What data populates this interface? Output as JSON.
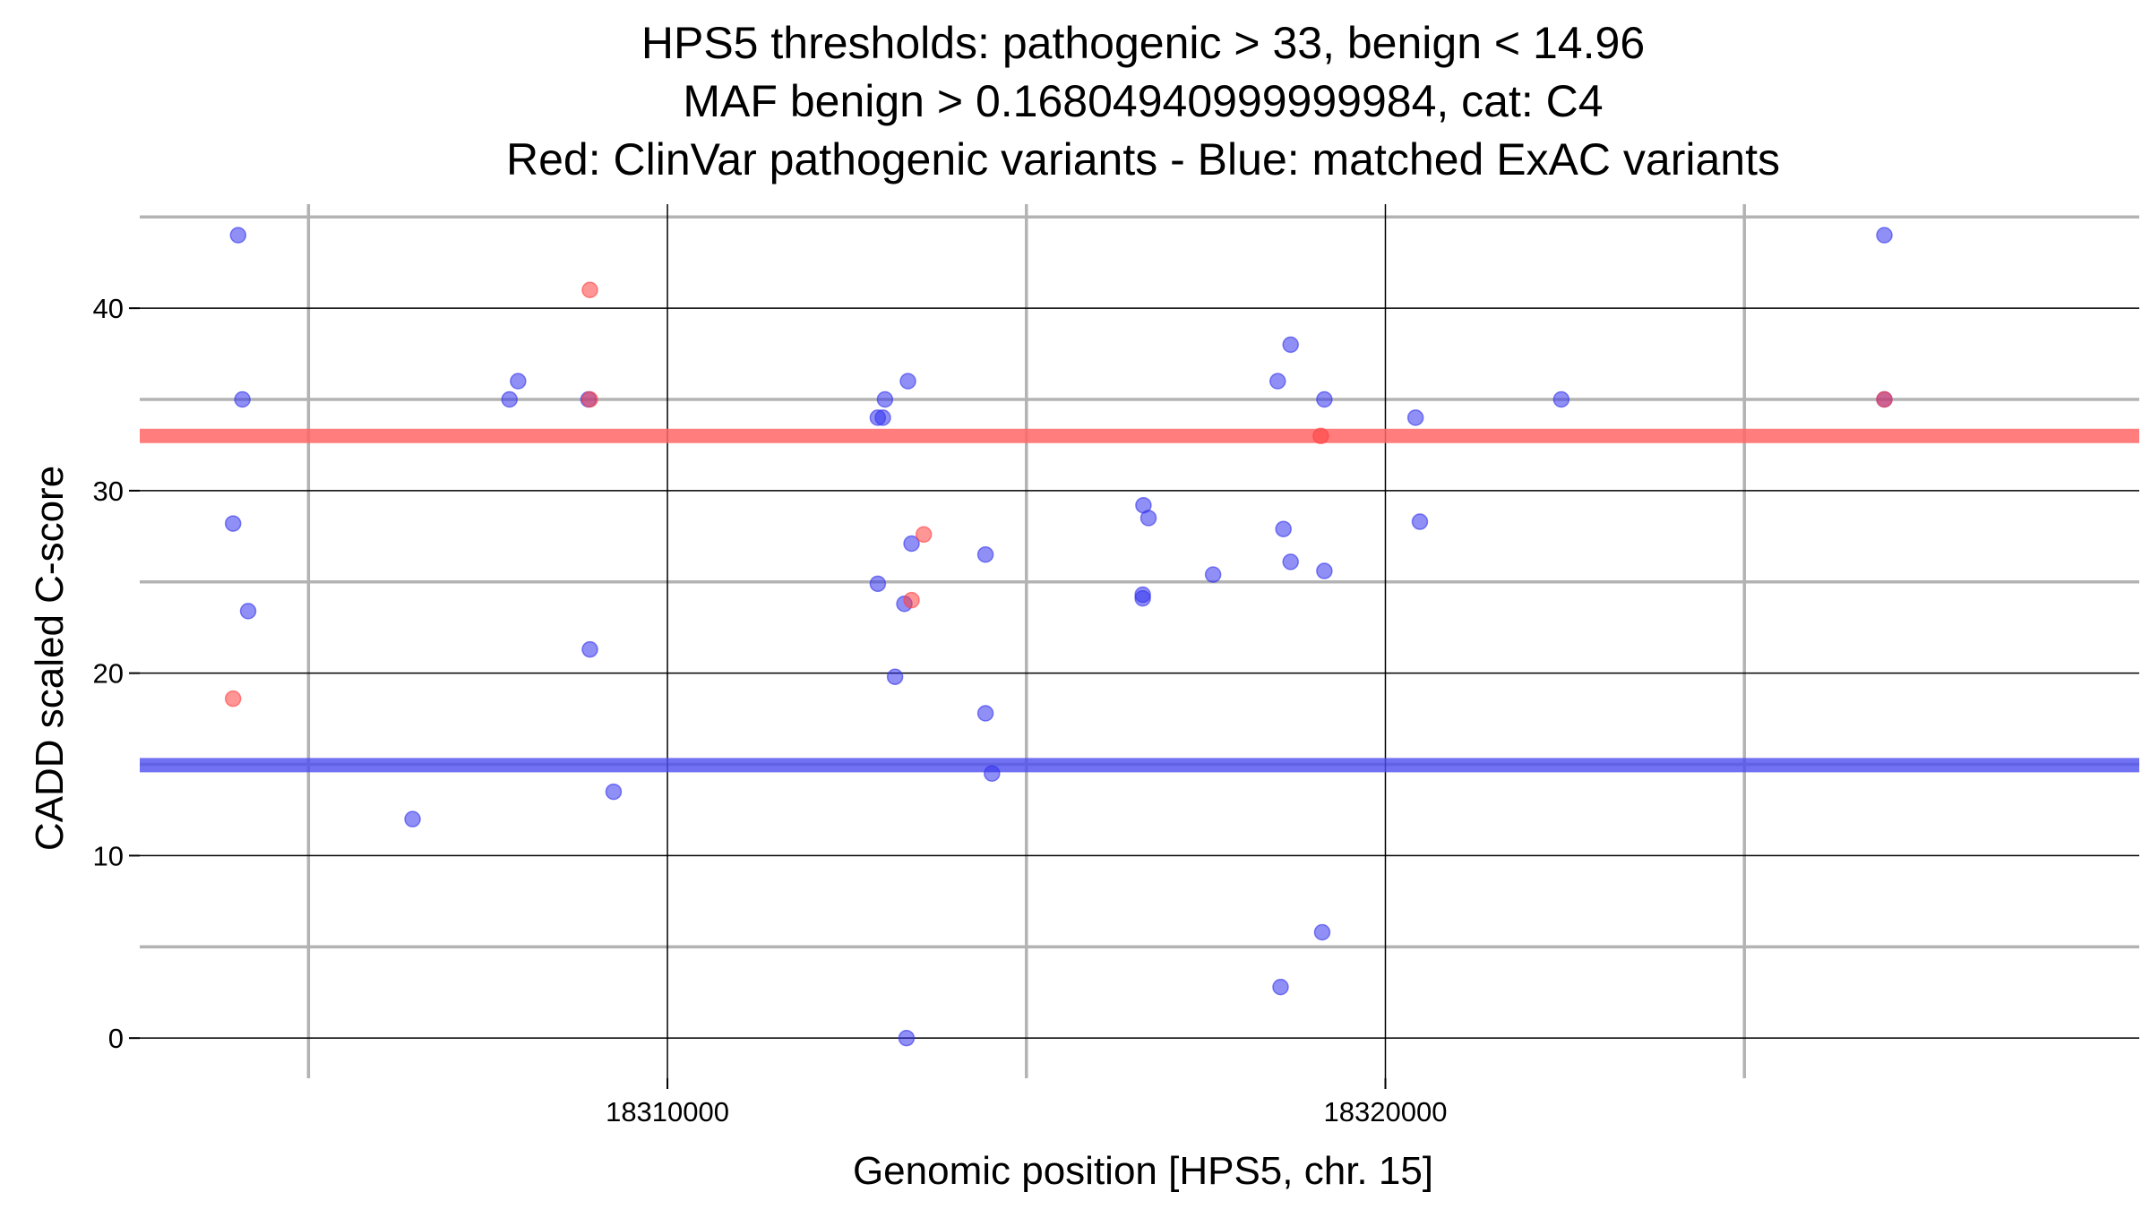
{
  "chart_data": {
    "type": "scatter",
    "title_lines": [
      "HPS5 thresholds: pathogenic > 33, benign < 14.96",
      "MAF benign > 0.16804940999999984, cat: C4",
      "Red: ClinVar pathogenic variants - Blue: matched ExAC variants"
    ],
    "xlabel": "Genomic position [HPS5, chr. 15]",
    "ylabel": "CADD scaled C-score",
    "xlim": [
      18302650,
      18330500
    ],
    "ylim": [
      -2.2,
      45.7
    ],
    "x_major_ticks": [
      18310000,
      18320000
    ],
    "x_minor_ticks": [
      18305000,
      18315000,
      18325000
    ],
    "y_major_ticks": [
      0,
      10,
      20,
      30,
      40
    ],
    "y_minor_ticks": [
      5,
      15,
      25,
      35,
      45
    ],
    "thresholds": {
      "pathogenic": 33,
      "benign": 14.96,
      "pathogenic_color": "#ff6666",
      "benign_color": "#4d4df0"
    },
    "colors": {
      "clinvar": "#ff4040",
      "exac": "#3333ee",
      "major_grid": "#000000",
      "minor_grid": "#b3b3b3"
    },
    "series": [
      {
        "name": "ClinVar pathogenic variants",
        "color": "#ff4040",
        "points": [
          {
            "x": 18303950,
            "y": 18.6
          },
          {
            "x": 18308920,
            "y": 41.0
          },
          {
            "x": 18308920,
            "y": 35.0
          },
          {
            "x": 18313570,
            "y": 27.6
          },
          {
            "x": 18313400,
            "y": 24.0
          },
          {
            "x": 18319100,
            "y": 33.0
          },
          {
            "x": 18326950,
            "y": 35.0
          }
        ]
      },
      {
        "name": "matched ExAC variants",
        "color": "#3333ee",
        "points": [
          {
            "x": 18304020,
            "y": 44.0
          },
          {
            "x": 18304080,
            "y": 35.0
          },
          {
            "x": 18303950,
            "y": 28.2
          },
          {
            "x": 18304160,
            "y": 23.4
          },
          {
            "x": 18306450,
            "y": 12.0
          },
          {
            "x": 18307800,
            "y": 35.0
          },
          {
            "x": 18307920,
            "y": 36.0
          },
          {
            "x": 18308900,
            "y": 35.0
          },
          {
            "x": 18308920,
            "y": 21.3
          },
          {
            "x": 18309250,
            "y": 13.5
          },
          {
            "x": 18312930,
            "y": 34.0
          },
          {
            "x": 18313000,
            "y": 34.0
          },
          {
            "x": 18313030,
            "y": 35.0
          },
          {
            "x": 18313350,
            "y": 36.0
          },
          {
            "x": 18313400,
            "y": 27.1
          },
          {
            "x": 18312930,
            "y": 24.9
          },
          {
            "x": 18313300,
            "y": 23.8
          },
          {
            "x": 18313170,
            "y": 19.8
          },
          {
            "x": 18313330,
            "y": 0.0
          },
          {
            "x": 18314430,
            "y": 26.5
          },
          {
            "x": 18314430,
            "y": 17.8
          },
          {
            "x": 18314520,
            "y": 14.5
          },
          {
            "x": 18316630,
            "y": 29.2
          },
          {
            "x": 18316700,
            "y": 28.5
          },
          {
            "x": 18316620,
            "y": 24.3
          },
          {
            "x": 18316620,
            "y": 24.1
          },
          {
            "x": 18317600,
            "y": 25.4
          },
          {
            "x": 18318500,
            "y": 36.0
          },
          {
            "x": 18318680,
            "y": 38.0
          },
          {
            "x": 18318580,
            "y": 27.9
          },
          {
            "x": 18318680,
            "y": 26.1
          },
          {
            "x": 18319150,
            "y": 35.0
          },
          {
            "x": 18319150,
            "y": 25.6
          },
          {
            "x": 18319120,
            "y": 5.8
          },
          {
            "x": 18318540,
            "y": 2.8
          },
          {
            "x": 18320420,
            "y": 34.0
          },
          {
            "x": 18320480,
            "y": 28.3
          },
          {
            "x": 18322450,
            "y": 35.0
          },
          {
            "x": 18326950,
            "y": 44.0
          },
          {
            "x": 18326950,
            "y": 35.0
          }
        ]
      }
    ]
  }
}
